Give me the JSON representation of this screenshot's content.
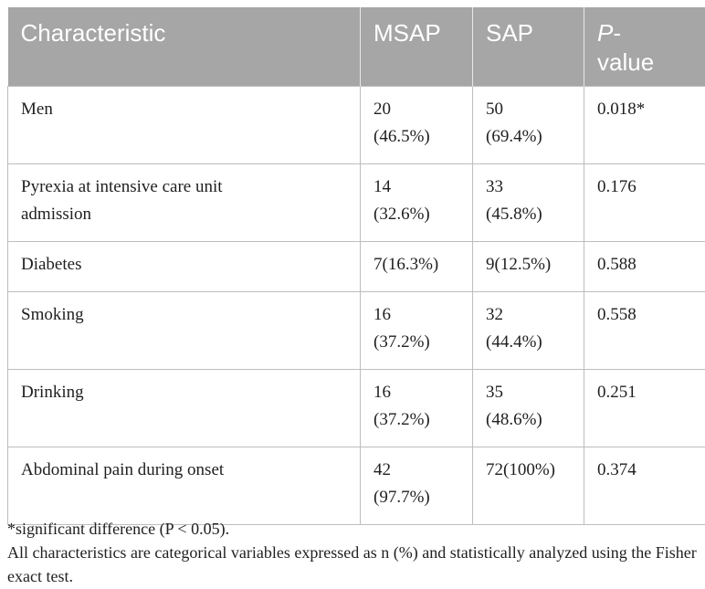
{
  "table": {
    "headers": {
      "characteristic": "Characteristic",
      "msap": "MSAP",
      "sap": "SAP",
      "p_italic": "P",
      "p_rest": "-value"
    },
    "rows": [
      {
        "characteristic": "Men",
        "msap_n": "20",
        "msap_pct": "(46.5%)",
        "sap_n": "50",
        "sap_pct": "(69.4%)",
        "p": "0.018*"
      },
      {
        "characteristic_line1": "Pyrexia at intensive care unit",
        "characteristic_line2": "admission",
        "msap_n": "14",
        "msap_pct": "(32.6%)",
        "sap_n": "33",
        "sap_pct": "(45.8%)",
        "p": "0.176"
      },
      {
        "characteristic": "Diabetes",
        "msap": "7(16.3%)",
        "sap": "9(12.5%)",
        "p": "0.588"
      },
      {
        "characteristic": "Smoking",
        "msap_n": "16",
        "msap_pct": "(37.2%)",
        "sap_n": "32",
        "sap_pct": "(44.4%)",
        "p": "0.558"
      },
      {
        "characteristic": "Drinking",
        "msap_n": "16",
        "msap_pct": "(37.2%)",
        "sap_n": "35",
        "sap_pct": "(48.6%)",
        "p": "0.251"
      },
      {
        "characteristic": "Abdominal pain during onset",
        "msap_n": "42",
        "msap_pct": "(97.7%)",
        "sap": "72(100%)",
        "p": "0.374"
      }
    ]
  },
  "footnotes": {
    "significance": "*significant difference (P < 0.05).",
    "method": "All characteristics are categorical variables expressed as n (%) and statistically analyzed using the Fisher exact test."
  },
  "colors": {
    "header_bg": "#a6a6a6",
    "header_text": "#ffffff",
    "border": "#bdbdbd",
    "text": "#1f1f1f"
  }
}
